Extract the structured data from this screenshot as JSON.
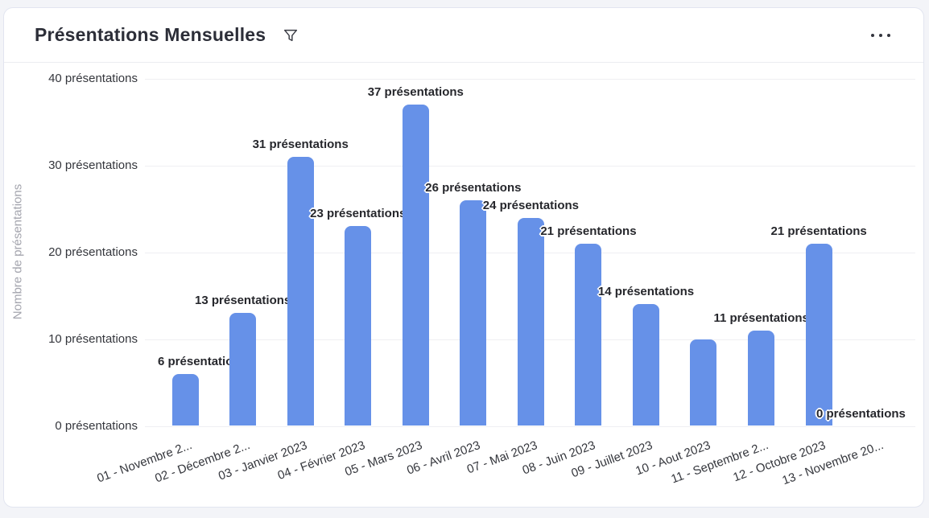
{
  "card": {
    "title": "Présentations Mensuelles",
    "filter_icon": "funnel-icon",
    "more_icon": "ellipsis-icon"
  },
  "chart_data": {
    "type": "bar",
    "title": "Présentations Mensuelles",
    "xlabel": "",
    "ylabel": "Nombre de présentations",
    "categories": [
      "01 - Novembre 2...",
      "02 - Décembre 2...",
      "03 - Janvier 2023",
      "04 - Février 2023",
      "05 - Mars 2023",
      "06 - Avril 2023",
      "07 - Mai 2023",
      "08 - Juin 2023",
      "09 - Juillet 2023",
      "10 - Aout 2023",
      "11 - Septembre 2...",
      "12 - Octobre 2023",
      "13 - Novembre 20..."
    ],
    "values": [
      6,
      13,
      31,
      23,
      37,
      26,
      24,
      21,
      14,
      10,
      11,
      21,
      0
    ],
    "bar_labels": [
      "6 présentations",
      "13 présentations",
      "31 présentations",
      "23 présentations",
      "37 présentations",
      "26 présentations",
      "24 présentations",
      "21 présentations",
      "14 présentations",
      null,
      "11 présentations",
      "21 présentations",
      "0 présentations"
    ],
    "y_ticks": [
      0,
      10,
      20,
      30,
      40
    ],
    "y_tick_labels": [
      "0 présentations",
      "10 présentations",
      "20 présentations",
      "30 présentations",
      "40 présentations"
    ],
    "ylim": [
      0,
      41
    ],
    "grid": true,
    "legend": false,
    "bar_color": "#6691E8",
    "label_color": "#26272C",
    "axis_text_color": "#34363C",
    "axis_title_color": "#A3A4AD",
    "gridline_color": "#EFEFF2"
  }
}
